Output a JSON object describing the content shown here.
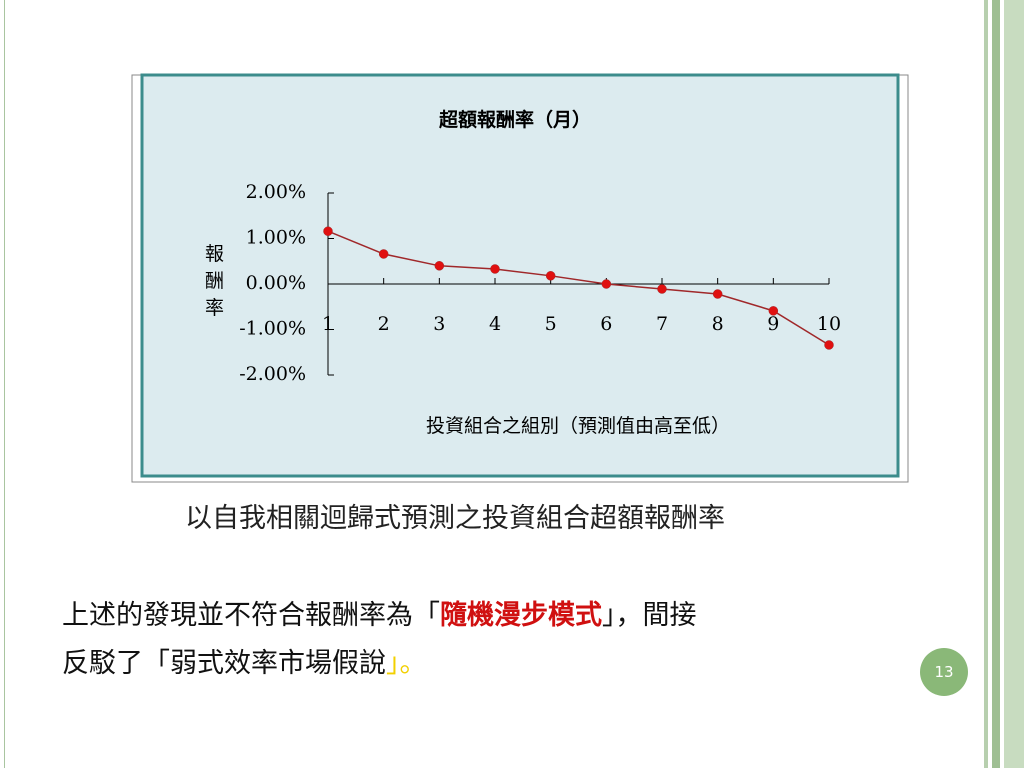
{
  "chart_data": {
    "type": "line",
    "title": "超額報酬率（月）",
    "y_label": "報酬率",
    "x_label": "投資組合之組別（預測值由高至低）",
    "categories": [
      "1",
      "2",
      "3",
      "4",
      "5",
      "6",
      "7",
      "8",
      "9",
      "10"
    ],
    "series": [
      {
        "color": "#a0282a",
        "marker_color": "#e01010",
        "values": [
          1.16,
          0.66,
          0.4,
          0.33,
          0.18,
          0.0,
          -0.11,
          -0.22,
          -0.59,
          -1.34
        ]
      }
    ],
    "ylim": [
      -2,
      2
    ],
    "yticks": [
      {
        "value": 2,
        "label": "2.00%"
      },
      {
        "value": 1,
        "label": "1.00%"
      },
      {
        "value": 0,
        "label": "0.00%"
      },
      {
        "value": -1,
        "label": "-1.00%"
      },
      {
        "value": -2,
        "label": "-2.00%"
      }
    ],
    "grid": false
  },
  "caption": "以自我相關迴歸式預測之投資組合超額報酬率",
  "body": {
    "line1": [
      "上述的發現並不符合報酬率為「",
      "隨機漫步模式",
      "」，間接"
    ],
    "line2": [
      "反駁了「弱式效率市場假說",
      "」。"
    ]
  },
  "page_number": "13"
}
